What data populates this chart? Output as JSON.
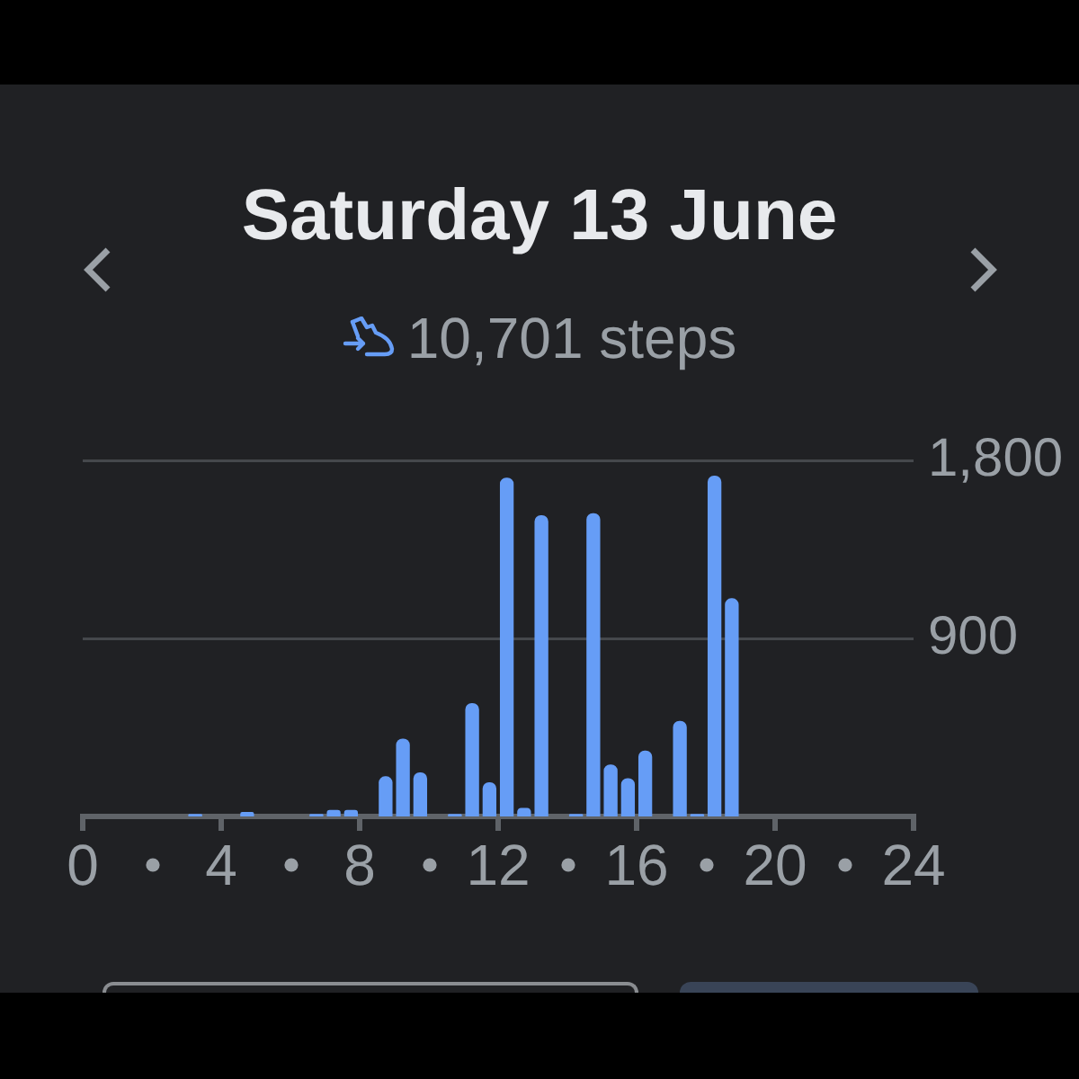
{
  "chart_data": {
    "type": "bar",
    "title": "Saturday 13 June",
    "subtitle": "10,701 steps",
    "x": [
      3.25,
      4.75,
      6.75,
      7.25,
      7.75,
      8.75,
      9.25,
      9.75,
      10.75,
      11.25,
      11.75,
      12.25,
      12.75,
      13.25,
      14.25,
      14.75,
      15.25,
      15.75,
      16.25,
      17.25,
      17.75,
      18.25,
      18.75
    ],
    "values": [
      10,
      20,
      10,
      30,
      30,
      200,
      390,
      220,
      10,
      570,
      170,
      1710,
      40,
      1520,
      10,
      1530,
      260,
      190,
      330,
      480,
      10,
      1720,
      1100
    ],
    "color": "#669df6",
    "xlim": [
      0,
      24
    ],
    "xticks": [
      0,
      4,
      8,
      12,
      16,
      20,
      24
    ],
    "ylim": [
      0,
      1800
    ],
    "yticks": [
      900,
      {
        "value": 1800,
        "label": "1,800"
      }
    ],
    "grid": "y"
  }
}
